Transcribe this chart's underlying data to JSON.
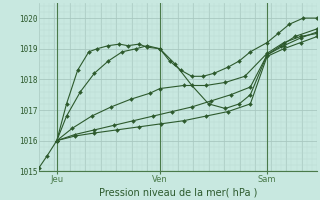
{
  "title": "Pression niveau de la mer( hPa )",
  "bg_color": "#c8e8e0",
  "grid_major_color": "#a8c8c0",
  "grid_minor_color": "#b8d8d0",
  "line_color": "#2d5a2d",
  "axis_color": "#4a7a4a",
  "text_color": "#2d5a2d",
  "ylim": [
    1015.0,
    1020.5
  ],
  "xlim": [
    0.0,
    1.0
  ],
  "yticks": [
    1015,
    1016,
    1017,
    1018,
    1019,
    1020
  ],
  "day_lines": [
    0.065,
    0.435,
    0.82
  ],
  "day_labels": [
    "Jeu",
    "Ven",
    "Sam"
  ],
  "series": [
    {
      "x": [
        0.0,
        0.03,
        0.065,
        0.1,
        0.14,
        0.18,
        0.21,
        0.25,
        0.29,
        0.32,
        0.36,
        0.39,
        0.435,
        0.47,
        0.51,
        0.55,
        0.59,
        0.63,
        0.68,
        0.72,
        0.76,
        0.82,
        0.86,
        0.9,
        0.95,
        1.0
      ],
      "y": [
        1015.1,
        1015.5,
        1016.0,
        1017.2,
        1018.3,
        1018.9,
        1019.0,
        1019.1,
        1019.15,
        1019.1,
        1019.15,
        1019.05,
        1019.0,
        1018.6,
        1018.3,
        1018.1,
        1018.1,
        1018.2,
        1018.4,
        1018.6,
        1018.9,
        1019.2,
        1019.5,
        1019.8,
        1020.0,
        1020.0
      ],
      "ms": 2.0
    },
    {
      "x": [
        0.065,
        0.1,
        0.15,
        0.2,
        0.25,
        0.3,
        0.35,
        0.39,
        0.435,
        0.49,
        0.55,
        0.61,
        0.67,
        0.72,
        0.76,
        0.82,
        0.87,
        0.92,
        1.0
      ],
      "y": [
        1016.0,
        1016.8,
        1017.6,
        1018.2,
        1018.6,
        1018.9,
        1019.0,
        1019.1,
        1019.0,
        1018.5,
        1017.8,
        1017.2,
        1017.05,
        1017.2,
        1017.5,
        1018.8,
        1019.1,
        1019.4,
        1019.65
      ],
      "ms": 2.0
    },
    {
      "x": [
        0.065,
        0.12,
        0.19,
        0.26,
        0.33,
        0.4,
        0.435,
        0.52,
        0.6,
        0.67,
        0.74,
        0.82,
        0.88,
        0.94,
        1.0
      ],
      "y": [
        1016.0,
        1016.4,
        1016.8,
        1017.1,
        1017.35,
        1017.55,
        1017.7,
        1017.8,
        1017.8,
        1017.9,
        1018.1,
        1018.85,
        1019.2,
        1019.4,
        1019.5
      ],
      "ms": 2.0
    },
    {
      "x": [
        0.065,
        0.13,
        0.2,
        0.27,
        0.34,
        0.41,
        0.48,
        0.55,
        0.62,
        0.69,
        0.76,
        0.82,
        0.88,
        0.94,
        1.0
      ],
      "y": [
        1016.0,
        1016.2,
        1016.35,
        1016.5,
        1016.65,
        1016.8,
        1016.95,
        1017.1,
        1017.3,
        1017.5,
        1017.75,
        1018.8,
        1019.1,
        1019.35,
        1019.55
      ],
      "ms": 2.0
    },
    {
      "x": [
        0.065,
        0.13,
        0.2,
        0.28,
        0.36,
        0.44,
        0.52,
        0.6,
        0.68,
        0.76,
        0.82,
        0.88,
        0.94,
        1.0
      ],
      "y": [
        1016.0,
        1016.15,
        1016.25,
        1016.35,
        1016.45,
        1016.55,
        1016.65,
        1016.8,
        1016.95,
        1017.2,
        1018.75,
        1019.0,
        1019.2,
        1019.4
      ],
      "ms": 2.0
    }
  ]
}
